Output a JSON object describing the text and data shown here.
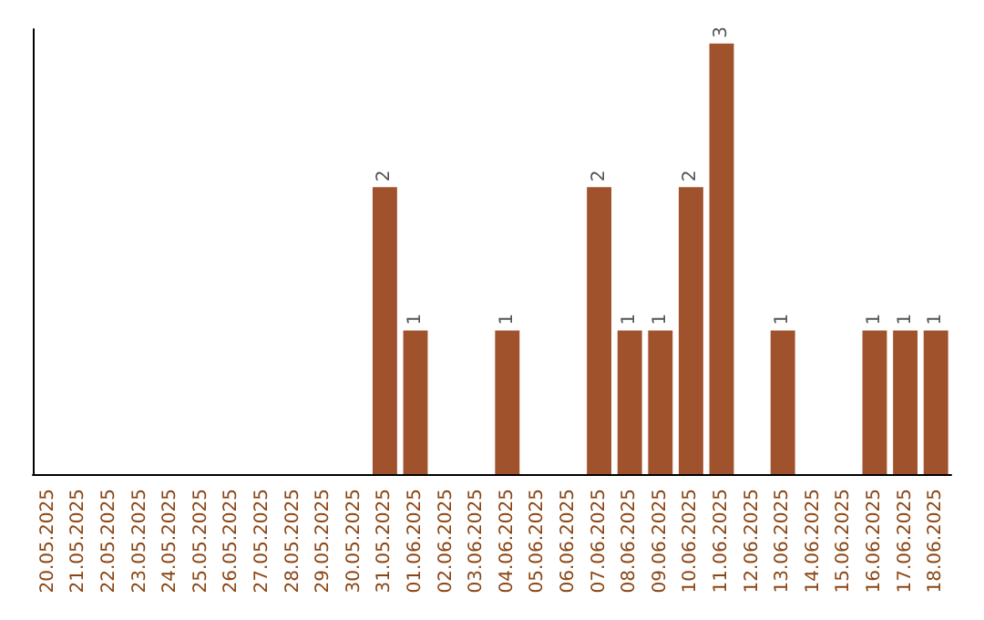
{
  "chart_data": {
    "type": "bar",
    "categories": [
      "20.05.2025",
      "21.05.2025",
      "22.05.2025",
      "23.05.2025",
      "24.05.2025",
      "25.05.2025",
      "26.05.2025",
      "27.05.2025",
      "28.05.2025",
      "29.05.2025",
      "30.05.2025",
      "31.05.2025",
      "01.06.2025",
      "02.06.2025",
      "03.06.2025",
      "04.06.2025",
      "05.06.2025",
      "06.06.2025",
      "07.06.2025",
      "08.06.2025",
      "09.06.2025",
      "10.06.2025",
      "11.06.2025",
      "12.06.2025",
      "13.06.2025",
      "14.06.2025",
      "15.06.2025",
      "16.06.2025",
      "17.06.2025",
      "18.06.2025"
    ],
    "values": [
      0,
      0,
      0,
      0,
      0,
      0,
      0,
      0,
      0,
      0,
      0,
      2,
      1,
      0,
      0,
      1,
      0,
      0,
      2,
      1,
      1,
      2,
      3,
      0,
      1,
      0,
      0,
      1,
      1,
      1
    ],
    "value_labels": [
      null,
      null,
      null,
      null,
      null,
      null,
      null,
      null,
      null,
      null,
      null,
      "2",
      "1",
      null,
      null,
      "1",
      null,
      null,
      "2",
      "1",
      "1",
      "2",
      "3",
      null,
      "1",
      null,
      null,
      "1",
      "1",
      "1"
    ],
    "color": "#a0522d",
    "ylim": [
      0,
      3.1
    ],
    "tick_labels": "x",
    "grid": false
  }
}
